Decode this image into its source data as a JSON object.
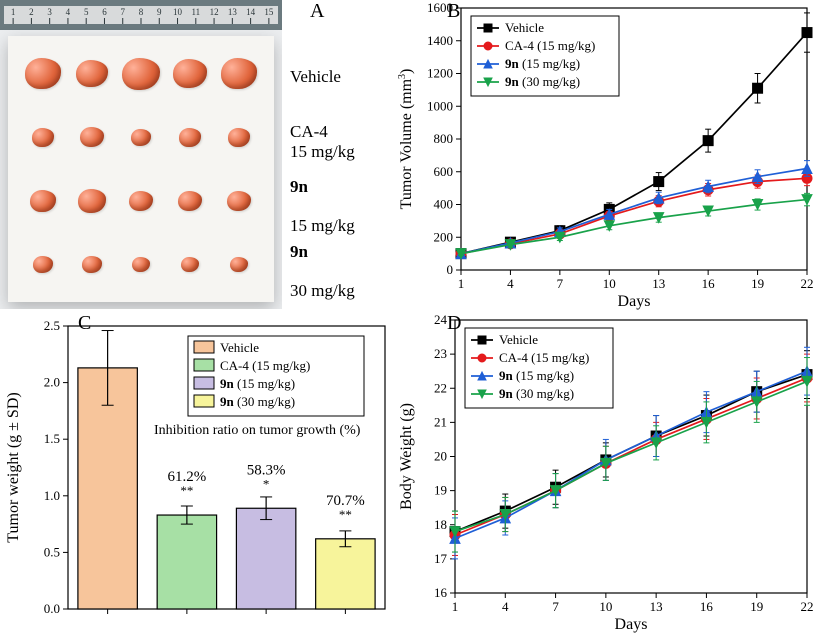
{
  "panels": {
    "a_label": "A",
    "b_label": "B",
    "c_label": "C",
    "d_label": "D"
  },
  "panelA": {
    "photo_bg": "#6b7a7f",
    "ruler_ticks": [
      1,
      2,
      3,
      4,
      5,
      6,
      7,
      8,
      9,
      10,
      11,
      12,
      13,
      14,
      15
    ],
    "row_labels": [
      {
        "line1": "Vehicle",
        "line2": ""
      },
      {
        "line1": "CA-4",
        "line2": "15 mg/kg"
      },
      {
        "line1": "9n",
        "line2": "15 mg/kg",
        "bold": true
      },
      {
        "line1": "9n",
        "line2": "30 mg/kg",
        "bold": true
      }
    ],
    "tumor_sizes": [
      [
        36,
        32,
        38,
        34,
        36
      ],
      [
        22,
        24,
        20,
        22,
        22
      ],
      [
        26,
        28,
        24,
        24,
        24
      ],
      [
        20,
        20,
        18,
        18,
        18
      ]
    ],
    "tumor_color_inner": "#ffb199",
    "tumor_color_mid": "#e1663d",
    "tumor_color_outer": "#b63a17"
  },
  "panelB": {
    "type": "line",
    "x": [
      1,
      4,
      7,
      10,
      13,
      16,
      19,
      22
    ],
    "xlim": [
      1,
      22
    ],
    "ylim": [
      0,
      1600
    ],
    "ytick_step": 200,
    "xlabel": "Days",
    "ylabel": "Tumor Volume (mm",
    "yexponent": "3",
    "series": [
      {
        "name": "Vehicle",
        "marker": "square",
        "color": "#000000",
        "values": [
          100,
          170,
          240,
          370,
          540,
          790,
          1110,
          1450
        ],
        "err": [
          15,
          20,
          30,
          40,
          55,
          70,
          90,
          120
        ]
      },
      {
        "name": "CA-4 (15 mg/kg)",
        "marker": "circle",
        "color": "#e41a1c",
        "values": [
          100,
          160,
          220,
          330,
          420,
          490,
          540,
          560
        ],
        "err": [
          12,
          18,
          22,
          28,
          34,
          38,
          40,
          45
        ]
      },
      {
        "name": "9n (15 mg/kg)",
        "marker": "triangle-up",
        "color": "#1f5fd6",
        "values": [
          100,
          165,
          235,
          340,
          440,
          510,
          570,
          620
        ],
        "err": [
          12,
          18,
          22,
          30,
          35,
          38,
          42,
          48
        ],
        "name_bold_prefix": "9n"
      },
      {
        "name": "9n (30 mg/kg)",
        "marker": "triangle-down",
        "color": "#19a24a",
        "values": [
          100,
          155,
          200,
          270,
          320,
          360,
          400,
          430
        ],
        "err": [
          12,
          16,
          20,
          24,
          28,
          30,
          34,
          38
        ],
        "name_bold_prefix": "9n"
      }
    ],
    "legend_pos": "inside-top-left",
    "background_color": "#ffffff",
    "axis_color": "#000000",
    "line_width": 1.7,
    "marker_size": 5
  },
  "panelC": {
    "type": "bar",
    "ylabel_pre": "Tumor weight (g ",
    "ylabel_mid": "±",
    "ylabel_post": " SD)",
    "ylim": [
      0.0,
      2.5
    ],
    "ytick_step": 0.5,
    "ydecimals": 1,
    "bars": [
      {
        "name": "Vehicle",
        "value": 2.13,
        "err": 0.33,
        "fill": "#f7c59b",
        "ratio_text": "",
        "sig": ""
      },
      {
        "name": "CA-4 (15 mg/kg)",
        "value": 0.83,
        "err": 0.08,
        "fill": "#a7e0a5",
        "ratio_text": "61.2%",
        "sig": "**"
      },
      {
        "name": "9n (15 mg/kg)",
        "value": 0.89,
        "err": 0.1,
        "fill": "#c7bde2",
        "ratio_text": "58.3%",
        "sig": "*",
        "name_bold_prefix": "9n"
      },
      {
        "name": "9n (30 mg/kg)",
        "value": 0.62,
        "err": 0.07,
        "fill": "#f7f49b",
        "ratio_text": "70.7%",
        "sig": "**",
        "name_bold_prefix": "9n"
      }
    ],
    "legend_title": "Inhibition ratio on tumor growth (%)",
    "bar_border": "#000000",
    "bar_width_rel": 0.75,
    "background_color": "#ffffff",
    "axis_color": "#000000"
  },
  "panelD": {
    "type": "line",
    "x": [
      1,
      4,
      7,
      10,
      13,
      16,
      19,
      22
    ],
    "xlim": [
      1,
      22
    ],
    "ylim": [
      16,
      24
    ],
    "ytick_step": 1,
    "xlabel": "Days",
    "ylabel": "Body Weight (g)",
    "series": [
      {
        "name": "Vehicle",
        "marker": "square",
        "color": "#000000",
        "values": [
          17.8,
          18.4,
          19.1,
          19.9,
          20.6,
          21.2,
          21.9,
          22.4
        ],
        "err": [
          0.6,
          0.5,
          0.5,
          0.5,
          0.6,
          0.6,
          0.6,
          0.7
        ]
      },
      {
        "name": "CA-4 (15 mg/kg)",
        "marker": "circle",
        "color": "#e41a1c",
        "values": [
          17.7,
          18.3,
          19.0,
          19.8,
          20.5,
          21.1,
          21.7,
          22.3
        ],
        "err": [
          0.6,
          0.5,
          0.5,
          0.5,
          0.5,
          0.6,
          0.6,
          0.7
        ]
      },
      {
        "name": "9n (15 mg/kg)",
        "marker": "triangle-up",
        "color": "#1f5fd6",
        "values": [
          17.6,
          18.2,
          19.0,
          19.9,
          20.6,
          21.3,
          21.9,
          22.5
        ],
        "err": [
          0.6,
          0.5,
          0.5,
          0.6,
          0.6,
          0.6,
          0.6,
          0.7
        ],
        "name_bold_prefix": "9n"
      },
      {
        "name": "9n (30 mg/kg)",
        "marker": "triangle-down",
        "color": "#19a24a",
        "values": [
          17.8,
          18.3,
          19.0,
          19.8,
          20.4,
          21.0,
          21.6,
          22.2
        ],
        "err": [
          0.6,
          0.5,
          0.5,
          0.5,
          0.5,
          0.6,
          0.6,
          0.7
        ],
        "name_bold_prefix": "9n"
      }
    ],
    "legend_pos": "inside-top-left",
    "background_color": "#ffffff",
    "axis_color": "#000000",
    "line_width": 1.7,
    "marker_size": 5
  }
}
